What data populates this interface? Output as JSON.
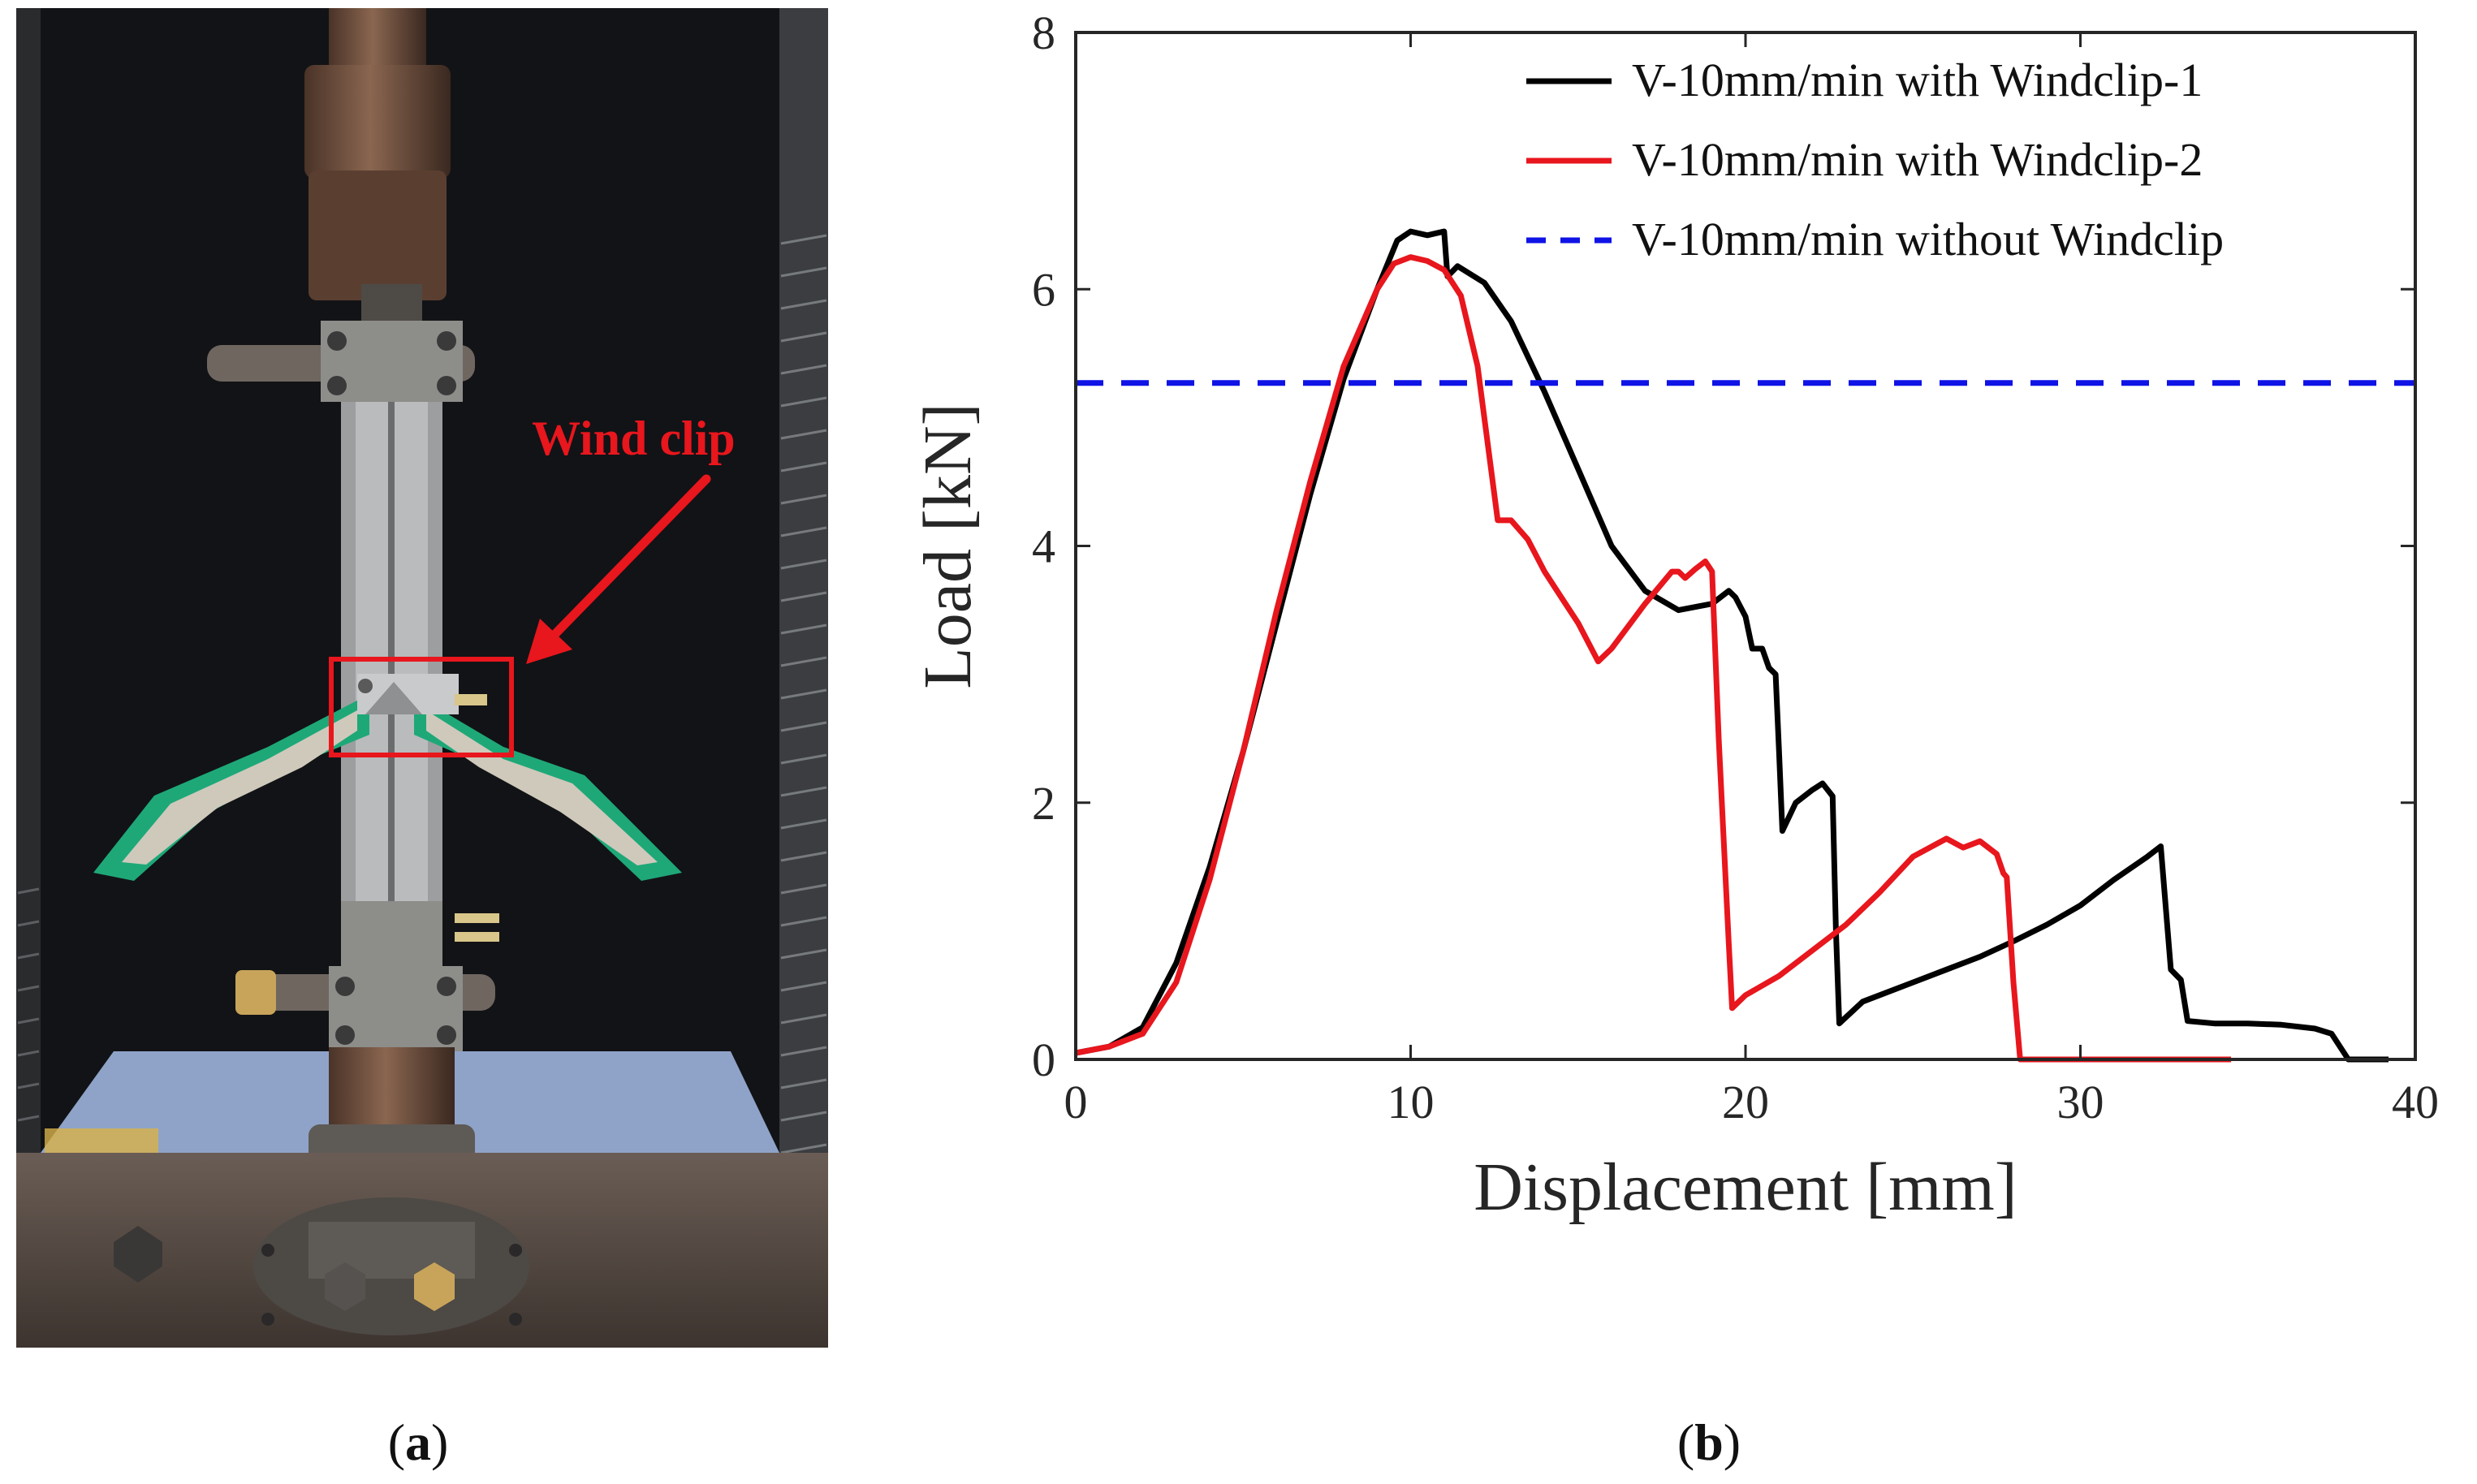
{
  "panel_a": {
    "caption_letter": "a",
    "callout_label": "Wind clip",
    "colors": {
      "callout": "#e8161d",
      "fabric": "#1ea878",
      "background": "#121316"
    }
  },
  "panel_b": {
    "caption_letter": "b"
  },
  "chart_data": {
    "type": "line",
    "title": "",
    "xlabel": "Displacement [mm]",
    "ylabel": "Load [kN]",
    "xlim": [
      0,
      40
    ],
    "ylim": [
      0,
      8
    ],
    "xticks": [
      0,
      10,
      20,
      30,
      40
    ],
    "yticks": [
      0,
      2,
      4,
      6,
      8
    ],
    "xtick_labels": [
      "0",
      "10",
      "20",
      "30",
      "40"
    ],
    "ytick_labels": [
      "0",
      "2",
      "4",
      "6",
      "8"
    ],
    "grid": false,
    "legend_position": "top-right",
    "series": [
      {
        "name": "V-10mm/min with Windclip-1",
        "color": "#000000",
        "style": "solid",
        "points": [
          [
            0,
            0.05
          ],
          [
            1,
            0.1
          ],
          [
            2,
            0.25
          ],
          [
            3,
            0.75
          ],
          [
            4,
            1.5
          ],
          [
            5,
            2.4
          ],
          [
            6,
            3.4
          ],
          [
            7,
            4.4
          ],
          [
            8,
            5.3
          ],
          [
            9,
            6.0
          ],
          [
            9.6,
            6.38
          ],
          [
            10,
            6.45
          ],
          [
            10.5,
            6.42
          ],
          [
            11,
            6.45
          ],
          [
            11.1,
            6.1
          ],
          [
            11.4,
            6.18
          ],
          [
            12.2,
            6.05
          ],
          [
            13,
            5.75
          ],
          [
            14,
            5.2
          ],
          [
            15,
            4.6
          ],
          [
            16,
            4.0
          ],
          [
            17,
            3.65
          ],
          [
            18,
            3.5
          ],
          [
            19,
            3.55
          ],
          [
            19.5,
            3.65
          ],
          [
            19.7,
            3.6
          ],
          [
            20,
            3.45
          ],
          [
            20.2,
            3.2
          ],
          [
            20.5,
            3.2
          ],
          [
            20.7,
            3.05
          ],
          [
            20.9,
            3.0
          ],
          [
            21,
            2.4
          ],
          [
            21.1,
            1.78
          ],
          [
            21.5,
            2.0
          ],
          [
            22,
            2.1
          ],
          [
            22.3,
            2.15
          ],
          [
            22.6,
            2.05
          ],
          [
            22.7,
            1.0
          ],
          [
            22.8,
            0.28
          ],
          [
            23.5,
            0.45
          ],
          [
            25,
            0.6
          ],
          [
            26,
            0.7
          ],
          [
            27,
            0.8
          ],
          [
            28,
            0.92
          ],
          [
            29,
            1.05
          ],
          [
            30,
            1.2
          ],
          [
            31,
            1.4
          ],
          [
            32,
            1.58
          ],
          [
            32.4,
            1.66
          ],
          [
            32.7,
            0.7
          ],
          [
            33,
            0.62
          ],
          [
            33.2,
            0.3
          ],
          [
            34,
            0.28
          ],
          [
            35,
            0.28
          ],
          [
            36,
            0.27
          ],
          [
            37,
            0.24
          ],
          [
            37.5,
            0.2
          ],
          [
            38,
            0.0
          ],
          [
            39.2,
            0.0
          ]
        ]
      },
      {
        "name": "V-10mm/min with Windclip-2",
        "color": "#e8161d",
        "style": "solid",
        "points": [
          [
            0,
            0.05
          ],
          [
            1,
            0.1
          ],
          [
            2,
            0.2
          ],
          [
            3,
            0.6
          ],
          [
            4,
            1.4
          ],
          [
            5,
            2.4
          ],
          [
            6,
            3.5
          ],
          [
            7,
            4.5
          ],
          [
            8,
            5.4
          ],
          [
            9,
            6.0
          ],
          [
            9.5,
            6.2
          ],
          [
            10,
            6.25
          ],
          [
            10.5,
            6.22
          ],
          [
            11,
            6.15
          ],
          [
            11.5,
            5.95
          ],
          [
            12,
            5.4
          ],
          [
            12.3,
            4.8
          ],
          [
            12.6,
            4.2
          ],
          [
            13,
            4.2
          ],
          [
            13.5,
            4.05
          ],
          [
            14,
            3.8
          ],
          [
            14.5,
            3.6
          ],
          [
            15,
            3.4
          ],
          [
            15.6,
            3.1
          ],
          [
            16,
            3.2
          ],
          [
            17,
            3.55
          ],
          [
            17.8,
            3.8
          ],
          [
            18,
            3.8
          ],
          [
            18.2,
            3.75
          ],
          [
            18.5,
            3.82
          ],
          [
            18.8,
            3.88
          ],
          [
            19,
            3.8
          ],
          [
            19.2,
            2.5
          ],
          [
            19.5,
            0.9
          ],
          [
            19.6,
            0.4
          ],
          [
            20,
            0.5
          ],
          [
            21,
            0.65
          ],
          [
            22,
            0.85
          ],
          [
            23,
            1.05
          ],
          [
            24,
            1.3
          ],
          [
            25,
            1.58
          ],
          [
            26,
            1.72
          ],
          [
            26.5,
            1.65
          ],
          [
            27,
            1.7
          ],
          [
            27.5,
            1.6
          ],
          [
            27.7,
            1.45
          ],
          [
            27.8,
            1.42
          ],
          [
            28,
            0.6
          ],
          [
            28.2,
            0.0
          ],
          [
            34.5,
            0.0
          ]
        ]
      },
      {
        "name": "V-10mm/min without Windclip",
        "color": "#0f13e6",
        "style": "dashed",
        "points": [
          [
            0,
            5.27
          ],
          [
            40,
            5.27
          ]
        ]
      }
    ]
  }
}
